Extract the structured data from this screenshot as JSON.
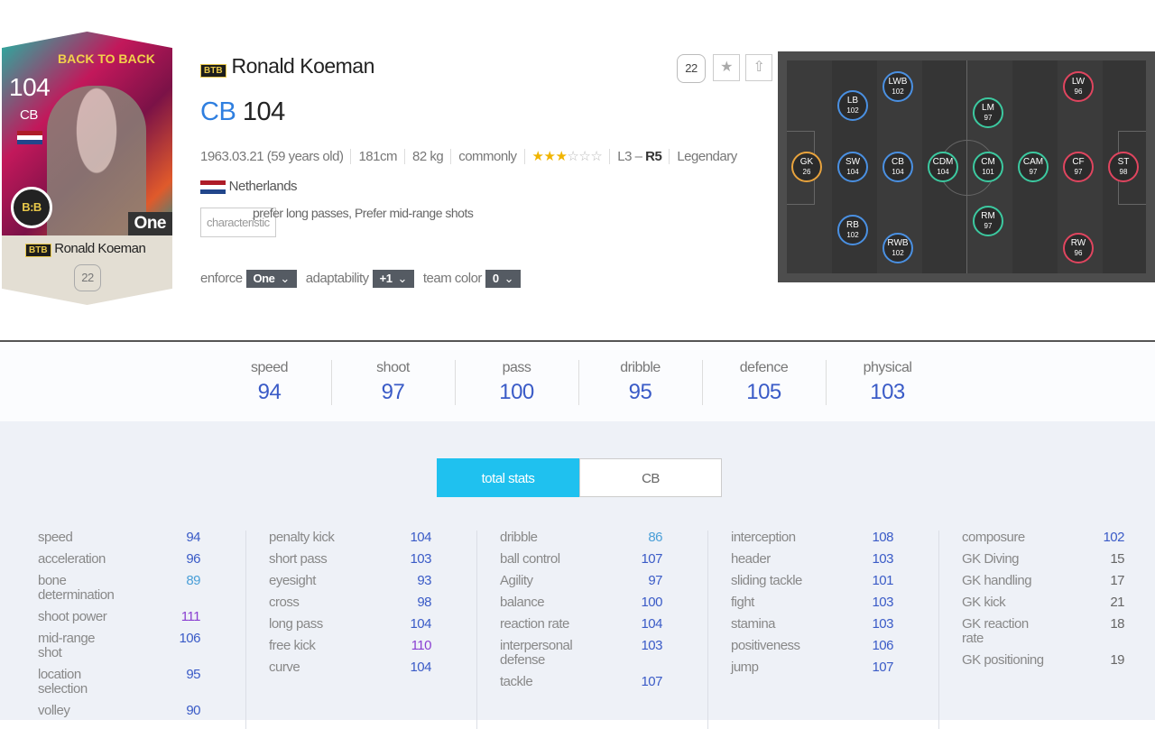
{
  "card": {
    "season": "BACK TO BACK",
    "ovr": 104,
    "position": "CB",
    "badge": "B:B",
    "bonus": "One",
    "tag": "BTB",
    "name": "Ronald Koeman",
    "level": 22
  },
  "header": {
    "tag": "BTB",
    "name": "Ronald Koeman",
    "position": "CB",
    "ovr": 104,
    "level": 22
  },
  "info": {
    "birth": "1963.03.21 (59 years old)",
    "height": "181cm",
    "weight": "82 kg",
    "body": "commonly",
    "stars": {
      "filled": 3,
      "total": 6
    },
    "foot_left": "L3 – ",
    "foot_right": "R5",
    "grade": "Legendary"
  },
  "nationality": "Netherlands",
  "trait": {
    "label": "characteristic",
    "text": "prefer long passes, Prefer mid-range shots"
  },
  "controls": [
    {
      "label": "enforce",
      "value": "One"
    },
    {
      "label": "adaptability",
      "value": "+1"
    },
    {
      "label": "team color",
      "value": "0"
    }
  ],
  "positions": [
    {
      "label": "GK",
      "value": 26,
      "color": "#e8a33d"
    },
    {
      "label": "SW",
      "value": 104,
      "color": "#4a90e2"
    },
    {
      "label": "LB",
      "value": 102,
      "color": "#4a90e2"
    },
    {
      "label": "RB",
      "value": 102,
      "color": "#4a90e2"
    },
    {
      "label": "CB",
      "value": 104,
      "color": "#4a90e2"
    },
    {
      "label": "LWB",
      "value": 102,
      "color": "#4a90e2"
    },
    {
      "label": "RWB",
      "value": 102,
      "color": "#4a90e2"
    },
    {
      "label": "CDM",
      "value": 104,
      "color": "#3cc9a0"
    },
    {
      "label": "CM",
      "value": 101,
      "color": "#3cc9a0"
    },
    {
      "label": "LM",
      "value": 97,
      "color": "#3cc9a0"
    },
    {
      "label": "RM",
      "value": 97,
      "color": "#3cc9a0"
    },
    {
      "label": "CAM",
      "value": 97,
      "color": "#3cc9a0"
    },
    {
      "label": "LW",
      "value": 96,
      "color": "#e0455f"
    },
    {
      "label": "RW",
      "value": 96,
      "color": "#e0455f"
    },
    {
      "label": "CF",
      "value": 97,
      "color": "#e0455f"
    },
    {
      "label": "ST",
      "value": 98,
      "color": "#e0455f"
    }
  ],
  "summary": [
    {
      "name": "speed",
      "value": 94
    },
    {
      "name": "shoot",
      "value": 97
    },
    {
      "name": "pass",
      "value": 100
    },
    {
      "name": "dribble",
      "value": 95
    },
    {
      "name": "defence",
      "value": 105
    },
    {
      "name": "physical",
      "value": 103
    }
  ],
  "tabs": [
    "total stats",
    "CB"
  ],
  "stats": [
    [
      {
        "name": "speed",
        "value": 94
      },
      {
        "name": "acceleration",
        "value": 96
      },
      {
        "name": "bone determination",
        "value": 89
      },
      {
        "name": "shoot power",
        "value": 111
      },
      {
        "name": "mid-range shot",
        "value": 106
      },
      {
        "name": "location selection",
        "value": 95
      },
      {
        "name": "volley",
        "value": 90
      }
    ],
    [
      {
        "name": "penalty kick",
        "value": 104
      },
      {
        "name": "short pass",
        "value": 103
      },
      {
        "name": "eyesight",
        "value": 93
      },
      {
        "name": "cross",
        "value": 98
      },
      {
        "name": "long pass",
        "value": 104
      },
      {
        "name": "free kick",
        "value": 110
      },
      {
        "name": "curve",
        "value": 104
      }
    ],
    [
      {
        "name": "dribble",
        "value": 86
      },
      {
        "name": "ball control",
        "value": 107
      },
      {
        "name": "Agility",
        "value": 97
      },
      {
        "name": "balance",
        "value": 100
      },
      {
        "name": "reaction rate",
        "value": 104
      },
      {
        "name": "interpersonal defense",
        "value": 103
      },
      {
        "name": "tackle",
        "value": 107
      }
    ],
    [
      {
        "name": "interception",
        "value": 108
      },
      {
        "name": "header",
        "value": 103
      },
      {
        "name": "sliding tackle",
        "value": 101
      },
      {
        "name": "fight",
        "value": 103
      },
      {
        "name": "stamina",
        "value": 103
      },
      {
        "name": "positiveness",
        "value": 106
      },
      {
        "name": "jump",
        "value": 107
      }
    ],
    [
      {
        "name": "composure",
        "value": 102
      },
      {
        "name": "GK Diving",
        "value": 15
      },
      {
        "name": "GK handling",
        "value": 17
      },
      {
        "name": "GK kick",
        "value": 21
      },
      {
        "name": "GK reaction rate",
        "value": 18
      },
      {
        "name": "GK positioning",
        "value": 19
      }
    ]
  ]
}
